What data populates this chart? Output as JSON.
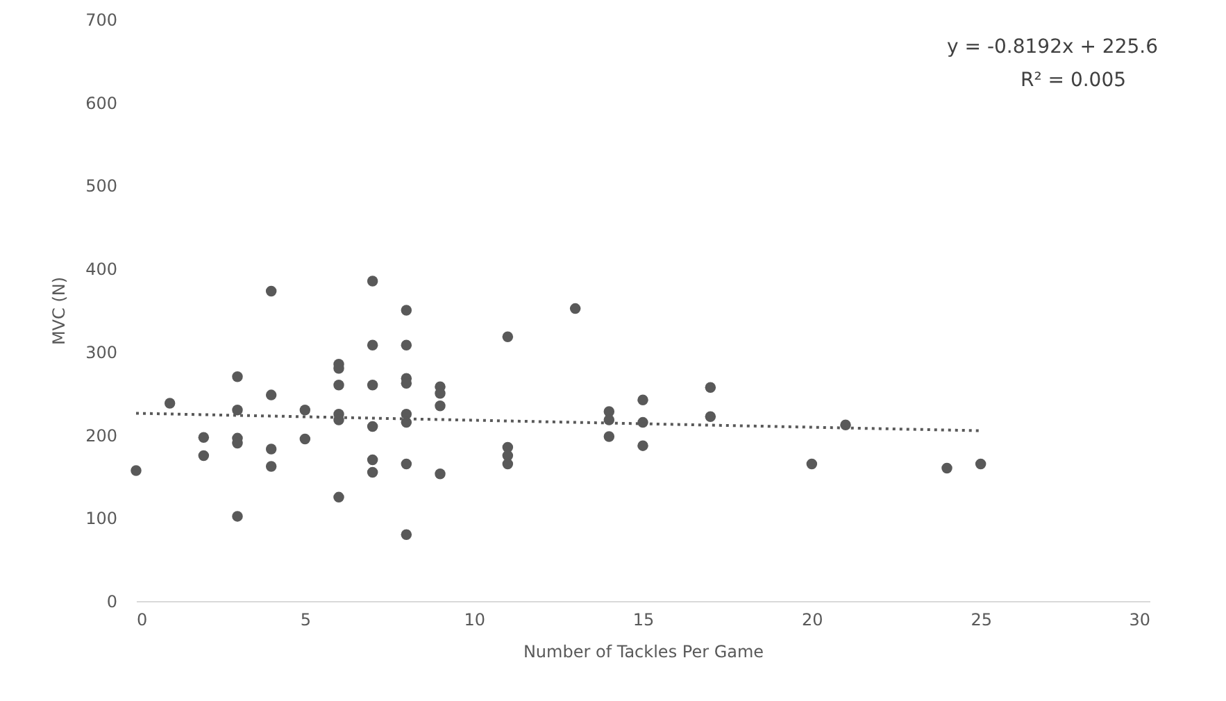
{
  "chart_data": {
    "type": "scatter",
    "xlabel": "Number of Tackles Per Game",
    "ylabel": "MVC (N)",
    "xlim": [
      0,
      30
    ],
    "xticks": [
      0,
      5,
      10,
      15,
      20,
      25,
      30
    ],
    "ylim": [
      0,
      700
    ],
    "yticks": [
      0,
      100,
      200,
      300,
      400,
      500,
      600,
      700
    ],
    "grid": false,
    "annotations": [
      "y = -0.8192x + 225.6",
      "R² = 0.005"
    ],
    "series": [
      {
        "color": "#595959",
        "marker": "circle",
        "x": [
          0,
          1,
          2,
          2,
          3,
          3,
          3,
          3,
          3,
          4,
          4,
          4,
          4,
          5,
          5,
          6,
          6,
          6,
          6,
          6,
          6,
          7,
          7,
          7,
          7,
          7,
          7,
          8,
          8,
          8,
          8,
          8,
          8,
          8,
          8,
          9,
          9,
          9,
          9,
          11,
          11,
          11,
          11,
          13,
          14,
          14,
          14,
          15,
          15,
          15,
          17,
          17,
          20,
          21,
          24,
          25
        ],
        "values": [
          157,
          238,
          197,
          175,
          270,
          230,
          196,
          190,
          102,
          373,
          248,
          183,
          162,
          230,
          195,
          285,
          280,
          260,
          225,
          218,
          125,
          385,
          308,
          260,
          210,
          170,
          155,
          350,
          308,
          268,
          262,
          225,
          215,
          165,
          80,
          258,
          250,
          235,
          153,
          318,
          185,
          175,
          165,
          352,
          228,
          218,
          198,
          242,
          215,
          187,
          257,
          222,
          165,
          212,
          160,
          165
        ]
      },
      {
        "type": "line",
        "color": "#595959",
        "line_style": "dotted",
        "marker": "none",
        "x": [
          0,
          25
        ],
        "values": [
          226,
          205
        ]
      }
    ]
  }
}
